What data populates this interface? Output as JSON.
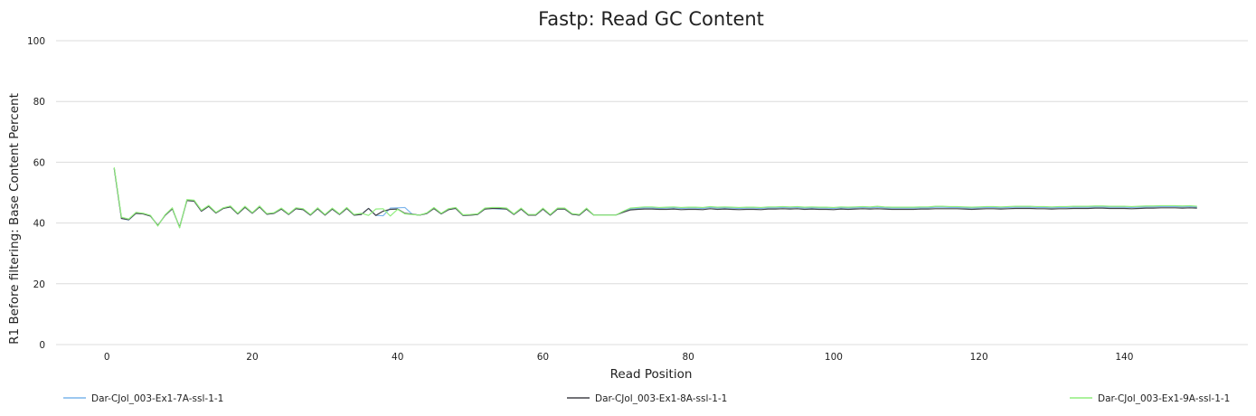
{
  "chart_data": {
    "type": "line",
    "title": "Fastp: Read GC Content",
    "xlabel": "Read Position",
    "ylabel": "R1 Before filtering: Base Content Percent",
    "xlim": [
      -7,
      157
    ],
    "ylim": [
      0,
      100
    ],
    "x_ticks": [
      0,
      20,
      40,
      60,
      80,
      100,
      120,
      140
    ],
    "y_ticks": [
      0,
      20,
      40,
      60,
      80,
      100
    ],
    "grid": true,
    "legend_position": "bottom",
    "x_base": [
      1,
      2,
      3,
      4,
      5,
      6,
      7,
      8,
      9,
      10,
      11,
      12,
      13,
      14,
      15,
      16,
      17,
      18,
      19,
      20,
      21,
      22,
      23,
      24,
      25,
      26,
      27,
      28,
      29,
      30,
      31,
      32,
      33,
      34,
      35,
      36,
      37,
      38,
      39,
      40,
      41,
      42,
      43,
      44,
      45,
      46,
      47,
      48,
      49,
      50,
      51,
      52,
      53,
      54,
      55,
      56,
      57,
      58,
      59,
      60,
      61,
      62,
      63,
      64,
      65,
      66,
      67,
      68,
      69,
      70,
      71,
      72,
      73,
      74,
      75,
      76,
      77,
      78,
      79,
      80,
      81,
      82,
      83,
      84,
      85,
      86,
      87,
      88,
      89,
      90,
      91,
      92,
      93,
      94,
      95,
      96,
      97,
      98,
      99,
      100,
      101,
      102,
      103,
      104,
      105,
      106,
      107,
      108,
      109,
      110,
      111,
      112,
      113,
      114,
      115,
      116,
      117,
      118,
      119,
      120,
      121,
      122,
      123,
      124,
      125,
      126,
      127,
      128,
      129,
      130,
      131,
      132,
      133,
      134,
      135,
      136,
      137,
      138,
      139,
      140,
      141,
      142,
      143,
      144,
      145,
      146,
      147,
      148,
      149,
      150
    ],
    "series": [
      {
        "name": "Dar-CJol_003-Ex1-7A-ssl-1-1",
        "color": "#7cb5ec",
        "values": [
          58.0,
          41.5,
          41.0,
          43.2,
          43.0,
          42.3,
          39.2,
          42.5,
          44.7,
          38.6,
          47.4,
          47.2,
          43.9,
          45.5,
          43.3,
          44.8,
          45.3,
          43.0,
          45.2,
          43.2,
          45.3,
          42.9,
          43.2,
          44.6,
          42.8,
          44.7,
          44.4,
          42.6,
          44.7,
          42.6,
          44.6,
          42.8,
          44.8,
          42.6,
          42.8,
          44.8,
          42.5,
          42.4,
          44.9,
          45.0,
          45.1,
          42.9,
          42.6,
          43.1,
          44.8,
          43.0,
          44.4,
          44.8,
          42.5,
          42.6,
          42.8,
          44.6,
          44.8,
          44.6,
          44.6,
          42.8,
          44.6,
          42.6,
          42.6,
          44.6,
          42.6,
          44.6,
          44.6,
          42.9,
          42.6,
          44.6,
          42.6,
          42.6,
          42.6,
          42.6,
          43.5,
          44.6,
          44.8,
          45.0,
          45.0,
          44.8,
          44.9,
          45.0,
          44.8,
          44.9,
          44.9,
          44.8,
          45.1,
          44.9,
          45.0,
          44.9,
          44.8,
          44.9,
          44.9,
          44.8,
          45.0,
          45.0,
          45.1,
          45.0,
          45.1,
          44.9,
          45.0,
          44.9,
          44.9,
          44.8,
          45.0,
          44.9,
          45.0,
          45.1,
          45.0,
          45.2,
          45.0,
          44.9,
          44.9,
          44.9,
          44.9,
          45.0,
          45.0,
          45.2,
          45.2,
          45.1,
          45.1,
          45.0,
          44.9,
          45.0,
          45.1,
          45.1,
          45.0,
          45.1,
          45.2,
          45.2,
          45.2,
          45.1,
          45.1,
          45.0,
          45.1,
          45.1,
          45.2,
          45.2,
          45.2,
          45.3,
          45.3,
          45.2,
          45.2,
          45.2,
          45.1,
          45.2,
          45.3,
          45.3,
          45.4,
          45.4,
          45.4,
          45.3,
          45.4,
          45.2
        ]
      },
      {
        "name": "Dar-CJol_003-Ex1-8A-ssl-1-1",
        "color": "#434348",
        "values": [
          58.0,
          41.5,
          41.1,
          43.2,
          43.0,
          42.3,
          39.2,
          42.5,
          44.7,
          38.6,
          47.4,
          47.2,
          43.9,
          45.5,
          43.3,
          44.8,
          45.3,
          43.0,
          45.2,
          43.2,
          45.3,
          42.9,
          43.2,
          44.6,
          42.8,
          44.7,
          44.4,
          42.6,
          44.7,
          42.6,
          44.6,
          42.8,
          44.8,
          42.6,
          42.8,
          44.8,
          42.5,
          43.9,
          44.5,
          44.6,
          43.2,
          42.9,
          42.6,
          43.1,
          44.8,
          43.0,
          44.4,
          44.8,
          42.5,
          42.6,
          42.8,
          44.6,
          44.8,
          44.8,
          44.6,
          42.8,
          44.6,
          42.6,
          42.6,
          44.6,
          42.6,
          44.6,
          44.6,
          42.9,
          42.6,
          44.6,
          42.6,
          42.6,
          42.6,
          42.6,
          43.5,
          44.3,
          44.5,
          44.6,
          44.6,
          44.5,
          44.5,
          44.6,
          44.4,
          44.5,
          44.5,
          44.4,
          44.7,
          44.5,
          44.6,
          44.5,
          44.4,
          44.5,
          44.5,
          44.4,
          44.6,
          44.6,
          44.7,
          44.6,
          44.7,
          44.5,
          44.6,
          44.5,
          44.5,
          44.4,
          44.6,
          44.5,
          44.6,
          44.7,
          44.6,
          44.7,
          44.6,
          44.5,
          44.5,
          44.5,
          44.5,
          44.6,
          44.6,
          44.7,
          44.7,
          44.7,
          44.7,
          44.6,
          44.5,
          44.6,
          44.7,
          44.7,
          44.6,
          44.7,
          44.8,
          44.8,
          44.8,
          44.7,
          44.7,
          44.6,
          44.7,
          44.7,
          44.8,
          44.8,
          44.8,
          44.9,
          44.9,
          44.8,
          44.8,
          44.8,
          44.7,
          44.8,
          44.9,
          44.9,
          45.0,
          45.0,
          45.0,
          44.9,
          45.0,
          44.9
        ]
      },
      {
        "name": "Dar-CJol_003-Ex1-9A-ssl-1-1",
        "color": "#90ed7d",
        "values": [
          58.3,
          41.9,
          41.3,
          43.5,
          43.2,
          42.5,
          39.0,
          42.7,
          45.0,
          38.4,
          47.7,
          47.5,
          44.2,
          45.8,
          43.5,
          45.0,
          45.6,
          43.2,
          45.5,
          43.4,
          45.6,
          43.1,
          43.4,
          44.9,
          43.0,
          45.0,
          44.7,
          42.8,
          45.0,
          42.8,
          44.9,
          43.0,
          45.1,
          42.8,
          43.2,
          42.5,
          44.6,
          44.7,
          42.3,
          44.5,
          43.0,
          42.8,
          42.6,
          43.3,
          45.1,
          43.2,
          44.7,
          45.1,
          42.7,
          42.8,
          43.0,
          44.9,
          45.1,
          45.1,
          44.9,
          43.0,
          44.9,
          42.8,
          42.8,
          44.9,
          42.8,
          44.9,
          44.9,
          43.1,
          42.8,
          44.9,
          42.6,
          42.6,
          42.6,
          42.6,
          43.8,
          44.9,
          45.1,
          45.3,
          45.3,
          45.1,
          45.2,
          45.3,
          45.1,
          45.2,
          45.2,
          45.1,
          45.4,
          45.2,
          45.3,
          45.2,
          45.1,
          45.2,
          45.2,
          45.1,
          45.3,
          45.3,
          45.4,
          45.3,
          45.4,
          45.2,
          45.3,
          45.2,
          45.2,
          45.1,
          45.3,
          45.2,
          45.3,
          45.4,
          45.3,
          45.5,
          45.3,
          45.2,
          45.2,
          45.2,
          45.2,
          45.3,
          45.3,
          45.5,
          45.5,
          45.4,
          45.4,
          45.3,
          45.2,
          45.3,
          45.4,
          45.4,
          45.3,
          45.4,
          45.5,
          45.5,
          45.5,
          45.4,
          45.4,
          45.3,
          45.4,
          45.4,
          45.5,
          45.5,
          45.5,
          45.6,
          45.6,
          45.5,
          45.5,
          45.5,
          45.4,
          45.5,
          45.6,
          45.6,
          45.7,
          45.7,
          45.7,
          45.6,
          45.7,
          45.5
        ]
      }
    ]
  }
}
